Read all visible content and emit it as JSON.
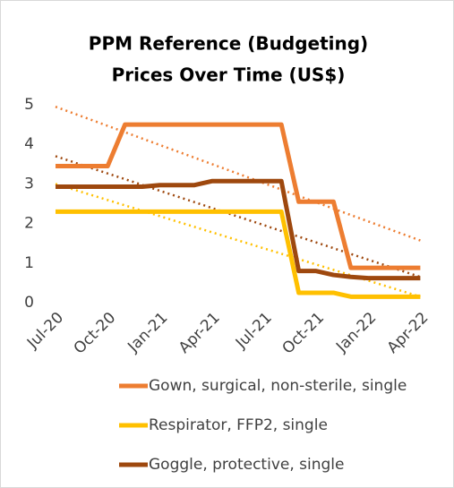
{
  "chart_data": {
    "type": "line",
    "title": [
      "PPM Reference (Budgeting)",
      "Prices Over Time (US$)"
    ],
    "categories": [
      "Jul-20",
      null,
      null,
      "Oct-20",
      null,
      null,
      "Jan-21",
      null,
      null,
      "Apr-21",
      null,
      null,
      "Jul-21",
      null,
      null,
      "Oct-21",
      null,
      null,
      "Jan-22",
      null,
      null,
      "Apr-22"
    ],
    "series": [
      {
        "name": "Gown, surgical, non-sterile, single",
        "color": "#ed7d31",
        "values": [
          3.45,
          3.45,
          3.45,
          3.45,
          4.5,
          4.5,
          4.5,
          4.5,
          4.5,
          4.5,
          4.5,
          4.5,
          4.5,
          4.5,
          2.55,
          2.55,
          2.55,
          0.88,
          0.88,
          0.88,
          0.88,
          0.88
        ],
        "trend": [
          4.95,
          1.57
        ]
      },
      {
        "name": "Respirator, FFP2, single",
        "color": "#ffc000",
        "values": [
          2.3,
          2.3,
          2.3,
          2.3,
          2.3,
          2.3,
          2.3,
          2.3,
          2.3,
          2.3,
          2.3,
          2.3,
          2.3,
          2.3,
          0.25,
          0.25,
          0.25,
          0.15,
          0.15,
          0.15,
          0.15,
          0.15
        ],
        "trend": [
          3.0,
          0.15
        ]
      },
      {
        "name": "Goggle, protective, single",
        "color": "#9e480e",
        "values": [
          2.93,
          2.93,
          2.93,
          2.93,
          2.93,
          2.93,
          2.97,
          2.97,
          2.97,
          3.07,
          3.07,
          3.07,
          3.07,
          3.07,
          0.8,
          0.8,
          0.7,
          0.65,
          0.62,
          0.62,
          0.62,
          0.62
        ],
        "trend": [
          3.7,
          0.65
        ]
      }
    ],
    "ylim": [
      0,
      5
    ],
    "yticks": [
      0,
      1,
      2,
      3,
      4,
      5
    ],
    "grid": false,
    "legend": "bottom"
  }
}
